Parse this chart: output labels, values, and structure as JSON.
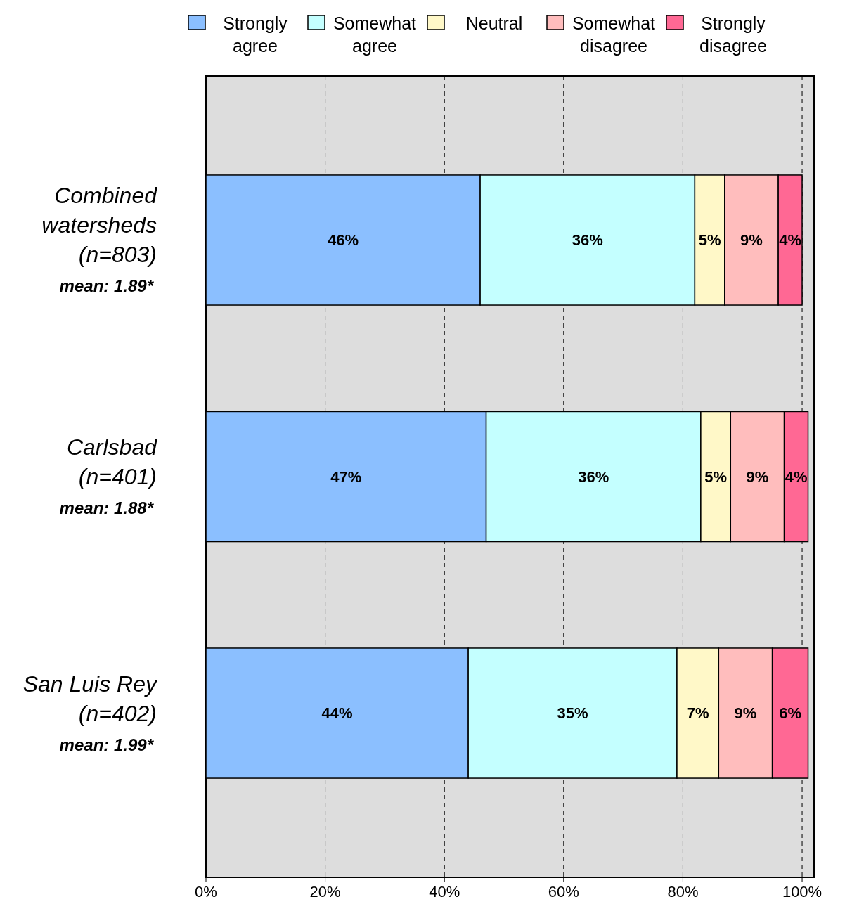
{
  "chart_data": {
    "type": "bar",
    "orientation": "horizontal",
    "stacked": true,
    "categories": [
      "Combined watersheds (n=803)",
      "Carlsbad (n=401)",
      "San Luis Rey (n=402)"
    ],
    "series": [
      {
        "name": "Strongly agree",
        "color": "#8bbfff",
        "values": [
          46,
          47,
          44
        ],
        "value_labels": [
          "46%",
          "47%",
          "44%"
        ]
      },
      {
        "name": "Somewhat agree",
        "color": "#c4ffff",
        "values": [
          36,
          36,
          35
        ],
        "value_labels": [
          "36%",
          "36%",
          "35%"
        ]
      },
      {
        "name": "Neutral",
        "color": "#fff8c8",
        "values": [
          5,
          5,
          7
        ],
        "value_labels": [
          "5%",
          "5%",
          "7%"
        ]
      },
      {
        "name": "Somewhat disagree",
        "color": "#ffbdbd",
        "values": [
          9,
          9,
          9
        ],
        "value_labels": [
          "9%",
          "9%",
          "9%"
        ]
      },
      {
        "name": "Strongly disagree",
        "color": "#ff6894",
        "values": [
          4,
          4,
          6
        ],
        "value_labels": [
          "4%",
          "4%",
          "6%"
        ]
      }
    ],
    "xlim": [
      0,
      102
    ],
    "xticks": [
      {
        "value": 0,
        "label": "0%"
      },
      {
        "value": 20,
        "label": "20%"
      },
      {
        "value": 40,
        "label": "40%"
      },
      {
        "value": 60,
        "label": "60%"
      },
      {
        "value": 80,
        "label": "80%"
      },
      {
        "value": 100,
        "label": "100%"
      }
    ],
    "grid": "x",
    "legend": "top",
    "annotations": [
      "mean:  1.89*",
      "mean:  1.88*",
      "mean:  1.99*"
    ]
  }
}
